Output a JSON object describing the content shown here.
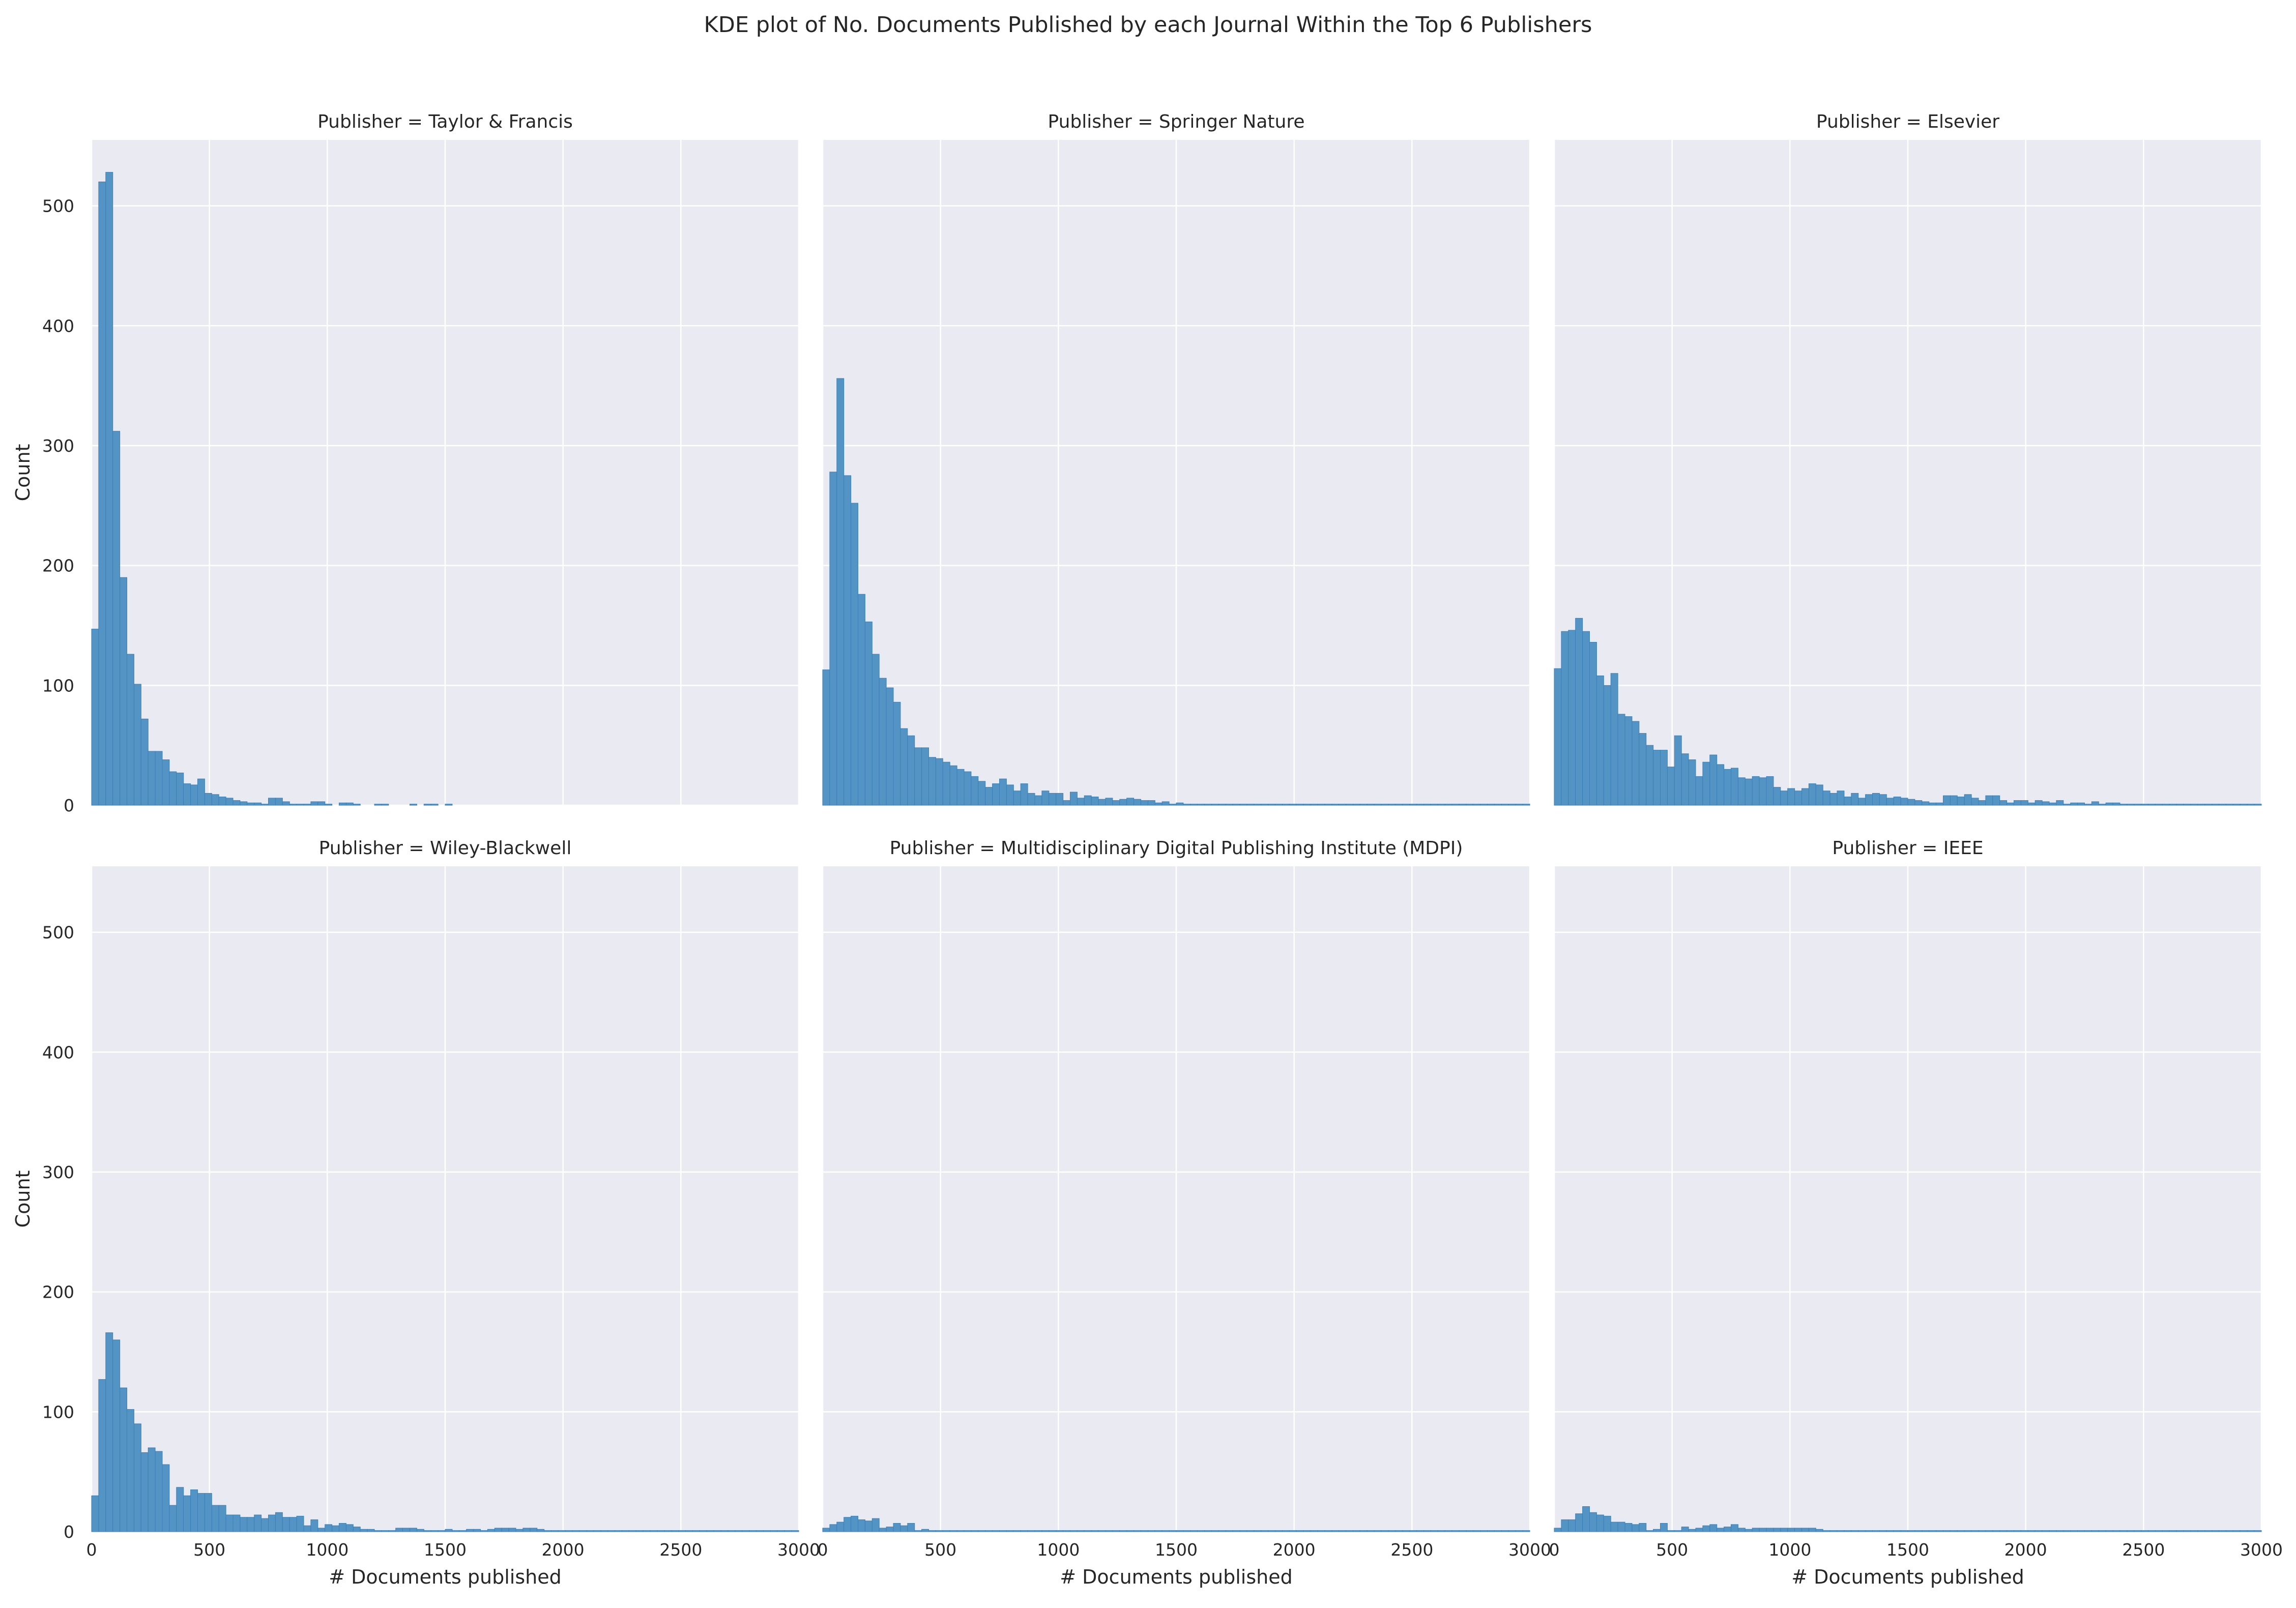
{
  "figure": {
    "title": "KDE plot of No. Documents Published by each Journal Within the Top 6 Publishers",
    "colors": {
      "background": "#eaeaf2",
      "grid": "#ffffff",
      "bar_fill": "#5494c5",
      "bar_edge": "#3a7fb8",
      "text": "#262626"
    }
  },
  "chart_data": [
    {
      "type": "bar",
      "title": "Publisher = Taylor & Francis",
      "xlabel": "",
      "ylabel": "Count",
      "xlim": [
        0,
        3000
      ],
      "ylim": [
        0,
        555
      ],
      "xticks": [],
      "yticks": [
        "0",
        "100",
        "200",
        "300",
        "400",
        "500"
      ],
      "bin_width": 30,
      "values": [
        147,
        520,
        528,
        312,
        190,
        126,
        101,
        72,
        45,
        45,
        38,
        28,
        27,
        18,
        17,
        22,
        10,
        9,
        7,
        6,
        4,
        3,
        2,
        2,
        1,
        6,
        6,
        3,
        1,
        1,
        1,
        3,
        3,
        1,
        0,
        2,
        2,
        1,
        0,
        0,
        1,
        1,
        0,
        0,
        0,
        1,
        0,
        1,
        1,
        0,
        1,
        0,
        0,
        0,
        0,
        0,
        0,
        0,
        0,
        0,
        0,
        0,
        0,
        0,
        0,
        0,
        0,
        0,
        0,
        0,
        0,
        0,
        0,
        0,
        0,
        0,
        0,
        0,
        0,
        0,
        0,
        0,
        0,
        0,
        0,
        0,
        0,
        0,
        0,
        0,
        0,
        0,
        0,
        0,
        0,
        0,
        0,
        0,
        0,
        0
      ]
    },
    {
      "type": "bar",
      "title": "Publisher = Springer Nature",
      "xlabel": "",
      "ylabel": "",
      "xlim": [
        0,
        3000
      ],
      "ylim": [
        0,
        555
      ],
      "xticks": [],
      "yticks": [],
      "bin_width": 30,
      "values": [
        113,
        278,
        356,
        275,
        252,
        176,
        153,
        126,
        106,
        98,
        86,
        64,
        58,
        48,
        48,
        40,
        39,
        36,
        33,
        30,
        28,
        24,
        20,
        15,
        18,
        22,
        17,
        12,
        18,
        10,
        8,
        12,
        10,
        10,
        4,
        11,
        6,
        8,
        7,
        5,
        6,
        4,
        5,
        6,
        5,
        4,
        4,
        2,
        3,
        1,
        2,
        1,
        1,
        1,
        1,
        1,
        1,
        1,
        1,
        1,
        1,
        1,
        1,
        1,
        1,
        1,
        1,
        1,
        1,
        1,
        1,
        1,
        1,
        1,
        1,
        1,
        1,
        1,
        1,
        1,
        1,
        1,
        1,
        1,
        1,
        1,
        1,
        1,
        1,
        1,
        1,
        1,
        1,
        1,
        1,
        1,
        1,
        1,
        1,
        1
      ]
    },
    {
      "type": "bar",
      "title": "Publisher = Elsevier",
      "xlabel": "",
      "ylabel": "",
      "xlim": [
        0,
        3000
      ],
      "ylim": [
        0,
        555
      ],
      "xticks": [],
      "yticks": [],
      "bin_width": 30,
      "values": [
        114,
        145,
        146,
        156,
        145,
        136,
        108,
        100,
        110,
        76,
        74,
        70,
        60,
        50,
        46,
        46,
        32,
        58,
        43,
        38,
        24,
        36,
        42,
        34,
        30,
        31,
        23,
        22,
        24,
        23,
        24,
        15,
        12,
        14,
        12,
        14,
        18,
        17,
        12,
        10,
        12,
        7,
        10,
        6,
        9,
        10,
        9,
        6,
        7,
        6,
        5,
        4,
        3,
        2,
        2,
        8,
        8,
        7,
        9,
        6,
        4,
        8,
        8,
        4,
        2,
        4,
        4,
        2,
        4,
        3,
        2,
        4,
        1,
        2,
        2,
        1,
        3,
        1,
        2,
        2,
        1,
        1,
        1,
        1,
        1,
        1,
        1,
        1,
        1,
        1,
        1,
        1,
        1,
        1,
        1,
        1,
        1,
        1,
        1,
        1
      ]
    },
    {
      "type": "bar",
      "title": "Publisher = Wiley-Blackwell",
      "xlabel": "# Documents published",
      "ylabel": "Count",
      "xlim": [
        0,
        3000
      ],
      "ylim": [
        0,
        555
      ],
      "xticks": [
        "0",
        "500",
        "1000",
        "1500",
        "2000",
        "2500",
        "3000"
      ],
      "yticks": [
        "0",
        "100",
        "200",
        "300",
        "400",
        "500"
      ],
      "bin_width": 30,
      "values": [
        30,
        127,
        166,
        160,
        120,
        102,
        90,
        66,
        70,
        67,
        56,
        22,
        37,
        30,
        35,
        32,
        32,
        22,
        22,
        14,
        14,
        12,
        12,
        14,
        11,
        14,
        16,
        12,
        12,
        13,
        5,
        10,
        3,
        6,
        5,
        7,
        6,
        4,
        2,
        2,
        1,
        1,
        1,
        3,
        3,
        3,
        2,
        1,
        1,
        1,
        2,
        1,
        1,
        2,
        2,
        1,
        2,
        3,
        3,
        3,
        2,
        3,
        3,
        2,
        1,
        1,
        1,
        1,
        1,
        1,
        1,
        1,
        1,
        1,
        1,
        1,
        1,
        1,
        1,
        1,
        1,
        1,
        1,
        1,
        1,
        1,
        1,
        1,
        1,
        1,
        1,
        1,
        1,
        1,
        1,
        1,
        1,
        1,
        1,
        1
      ]
    },
    {
      "type": "bar",
      "title": "Publisher = Multidisciplinary Digital Publishing Institute (MDPI)",
      "xlabel": "# Documents published",
      "ylabel": "",
      "xlim": [
        0,
        3000
      ],
      "ylim": [
        0,
        555
      ],
      "xticks": [
        "0",
        "500",
        "1000",
        "1500",
        "2000",
        "2500",
        "3000"
      ],
      "yticks": [],
      "bin_width": 30,
      "values": [
        3,
        6,
        8,
        12,
        13,
        10,
        9,
        11,
        3,
        4,
        7,
        5,
        7,
        1,
        2,
        1,
        1,
        1,
        1,
        1,
        1,
        1,
        1,
        1,
        1,
        1,
        1,
        1,
        1,
        1,
        1,
        1,
        1,
        1,
        1,
        1,
        1,
        1,
        1,
        1,
        1,
        1,
        1,
        1,
        1,
        1,
        1,
        1,
        1,
        1,
        1,
        1,
        1,
        1,
        1,
        1,
        1,
        1,
        1,
        1,
        1,
        1,
        1,
        1,
        1,
        1,
        1,
        1,
        1,
        1,
        1,
        1,
        1,
        1,
        1,
        1,
        1,
        1,
        1,
        1,
        1,
        1,
        1,
        1,
        1,
        1,
        1,
        1,
        1,
        1,
        1,
        1,
        1,
        1,
        1,
        1,
        1,
        1,
        1,
        1
      ]
    },
    {
      "type": "bar",
      "title": "Publisher = IEEE",
      "xlabel": "# Documents published",
      "ylabel": "",
      "xlim": [
        0,
        3000
      ],
      "ylim": [
        0,
        555
      ],
      "xticks": [
        "0",
        "500",
        "1000",
        "1500",
        "2000",
        "2500",
        "3000"
      ],
      "yticks": [],
      "bin_width": 30,
      "values": [
        3,
        10,
        10,
        15,
        21,
        16,
        14,
        13,
        8,
        8,
        7,
        6,
        7,
        1,
        2,
        7,
        1,
        1,
        4,
        2,
        3,
        5,
        6,
        3,
        4,
        6,
        3,
        2,
        3,
        3,
        3,
        3,
        3,
        3,
        3,
        3,
        3,
        2,
        1,
        1,
        1,
        1,
        1,
        1,
        1,
        1,
        1,
        1,
        1,
        1,
        1,
        1,
        1,
        1,
        1,
        1,
        1,
        1,
        1,
        1,
        1,
        1,
        1,
        1,
        1,
        1,
        1,
        1,
        1,
        1,
        1,
        1,
        1,
        1,
        1,
        1,
        1,
        1,
        1,
        1,
        1,
        1,
        1,
        1,
        1,
        1,
        1,
        1,
        1,
        1,
        1,
        1,
        1,
        1,
        1,
        1,
        1,
        1,
        1,
        1
      ]
    }
  ]
}
